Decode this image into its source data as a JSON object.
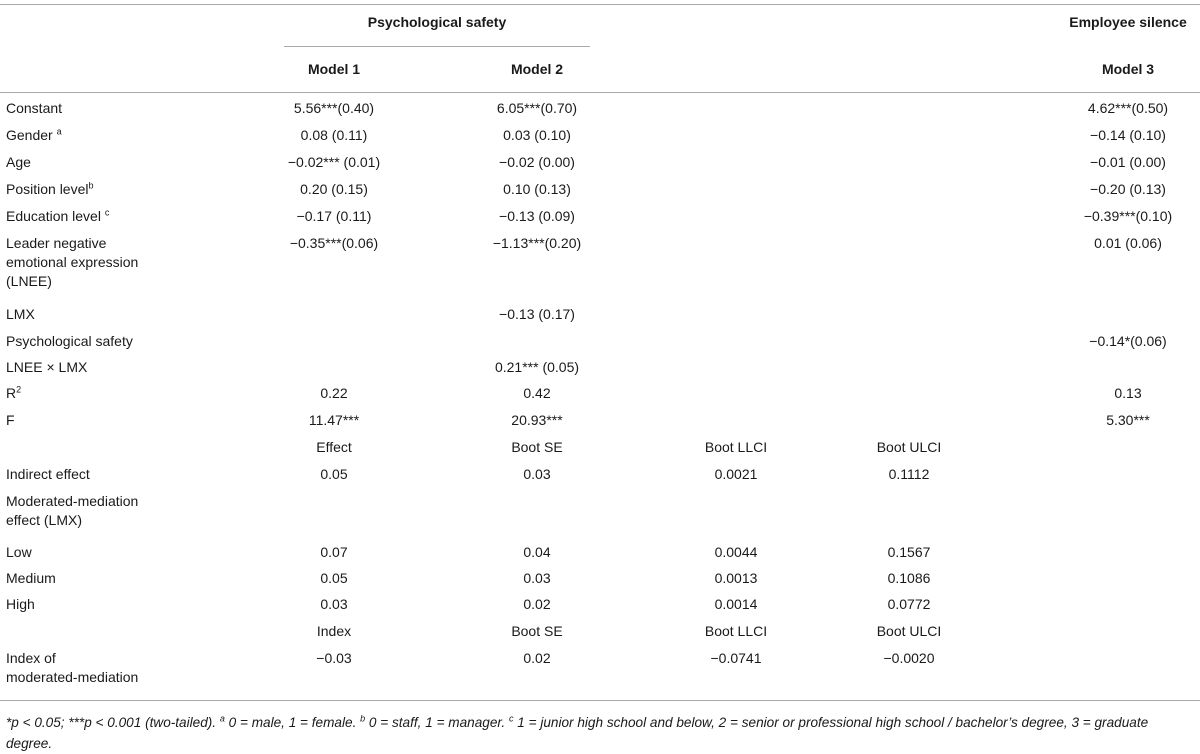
{
  "table": {
    "group_headers": [
      "Psychological safety",
      "Employee silence"
    ],
    "model_headers": [
      "Model 1",
      "Model 2",
      "Model 3"
    ],
    "reg_rows": [
      {
        "label": [
          "Constant"
        ],
        "sup": "",
        "m1": "5.56***(0.40)",
        "m2": "6.05***(0.70)",
        "m3": "4.62***(0.50)"
      },
      {
        "label": [
          "Gender "
        ],
        "sup": "a",
        "m1": "0.08 (0.11)",
        "m2": "0.03 (0.10)",
        "m3": "−0.14 (0.10)"
      },
      {
        "label": [
          "Age"
        ],
        "sup": "",
        "m1": "−0.02*** (0.01)",
        "m2": "−0.02 (0.00)",
        "m3": "−0.01 (0.00)"
      },
      {
        "label": [
          "Position level"
        ],
        "sup": "b",
        "m1": "0.20 (0.15)",
        "m2": "0.10 (0.13)",
        "m3": "−0.20 (0.13)"
      },
      {
        "label": [
          "Education level "
        ],
        "sup": "c",
        "m1": "−0.17 (0.11)",
        "m2": "−0.13 (0.09)",
        "m3": "−0.39***(0.10)"
      },
      {
        "label": [
          "Leader negative",
          "emotional expression",
          "(LNEE)"
        ],
        "sup": "",
        "m1": "−0.35***(0.06)",
        "m2": "−1.13***(0.20)",
        "m3": "0.01 (0.06)"
      },
      {
        "label": [
          "LMX"
        ],
        "sup": "",
        "m1": "",
        "m2": "−0.13 (0.17)",
        "m3": ""
      },
      {
        "label": [
          "Psychological safety"
        ],
        "sup": "",
        "m1": "",
        "m2": "",
        "m3": "−0.14*(0.06)"
      },
      {
        "label": [
          "LNEE × LMX"
        ],
        "sup": "",
        "m1": "",
        "m2": "0.21*** (0.05)",
        "m3": ""
      },
      {
        "label": [
          "R"
        ],
        "sup": "2",
        "m1": "0.22",
        "m2": "0.42",
        "m3": "0.13"
      },
      {
        "label": [
          "F"
        ],
        "sup": "",
        "m1": "11.47***",
        "m2": "20.93***",
        "m3": "5.30***"
      }
    ],
    "effect_header": [
      "Effect",
      "Boot SE",
      "Boot LLCI",
      "Boot ULCI"
    ],
    "effect_rows": [
      {
        "label": [
          "Indirect effect"
        ],
        "vals": [
          "0.05",
          "0.03",
          "0.0021",
          "0.1112"
        ]
      },
      {
        "label": [
          "Moderated-mediation",
          "effect (LMX)"
        ],
        "vals": [
          "",
          "",
          "",
          ""
        ]
      },
      {
        "label": [
          "Low"
        ],
        "vals": [
          "0.07",
          "0.04",
          "0.0044",
          "0.1567"
        ]
      },
      {
        "label": [
          "Medium"
        ],
        "vals": [
          "0.05",
          "0.03",
          "0.0013",
          "0.1086"
        ]
      },
      {
        "label": [
          "High"
        ],
        "vals": [
          "0.03",
          "0.02",
          "0.0014",
          "0.0772"
        ]
      }
    ],
    "index_header": [
      "Index",
      "Boot SE",
      "Boot LLCI",
      "Boot ULCI"
    ],
    "index_rows": [
      {
        "label": [
          "Index of",
          "moderated-mediation"
        ],
        "vals": [
          "−0.03",
          "0.02",
          "−0.0741",
          "−0.0020"
        ]
      }
    ]
  },
  "footnote": [
    {
      "t": "*p < 0.05; ***p < 0.001 (two-tailed). "
    },
    {
      "t": "a",
      "sup": true
    },
    {
      "t": " 0 = male, 1 = female. "
    },
    {
      "t": "b",
      "sup": true
    },
    {
      "t": " 0 = staff, 1 = manager. "
    },
    {
      "t": "c",
      "sup": true
    },
    {
      "t": " 1 = junior high school and below, 2 = senior or professional high school / bachelor’s degree, 3 = graduate degree."
    }
  ]
}
